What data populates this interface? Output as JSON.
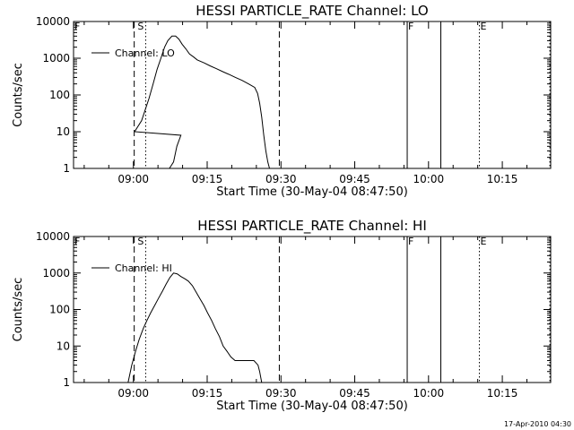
{
  "chart_data": [
    {
      "type": "line",
      "title": "HESSI PARTICLE_RATE Channel: LO",
      "xlabel": "Start Time (30-May-04 08:47:50)",
      "ylabel": "Counts/sec",
      "yscale": "log",
      "ylim": [
        1,
        10000
      ],
      "xlim_minutes_after_start": [
        0,
        97
      ],
      "xticks": [
        "09:00",
        "09:15",
        "09:30",
        "09:45",
        "10:00",
        "10:15"
      ],
      "yticks": [
        "1",
        "10",
        "100",
        "1000",
        "10000"
      ],
      "legend": {
        "label": "Channel: LO",
        "placement": "top-left"
      },
      "markers": [
        {
          "label": "F",
          "time": "08:47:50",
          "style": "solid"
        },
        {
          "label": "S",
          "time": "09:00:40",
          "style": "text"
        },
        {
          "label": "",
          "time": "09:00:10",
          "style": "dashed"
        },
        {
          "label": "",
          "time": "09:02:30",
          "style": "dotted"
        },
        {
          "label": "",
          "time": "09:29:40",
          "style": "dashed"
        },
        {
          "label": "F",
          "time": "09:55:40",
          "style": "solid"
        },
        {
          "label": "",
          "time": "10:02:30",
          "style": "solid"
        },
        {
          "label": "E",
          "time": "10:10:20",
          "style": "dotted"
        },
        {
          "label": "",
          "time": "10:24:40",
          "style": "dotted"
        }
      ],
      "series": [
        {
          "name": "Channel: LO",
          "x": [
            "09:07:20",
            "09:08:10",
            "09:08:50",
            "09:09:40",
            "09:00:15",
            "09:01:40",
            "09:02:25",
            "09:03:10",
            "09:04:00",
            "09:04:50",
            "09:05:35",
            "09:06:20",
            "09:07:00",
            "09:07:50",
            "09:08:35",
            "09:09:15",
            "09:09:55",
            "09:10:40",
            "09:11:25",
            "09:12:10",
            "09:13:00",
            "09:14:20",
            "09:15:35",
            "09:16:50",
            "09:18:10",
            "09:19:30",
            "09:20:45",
            "09:22:05",
            "09:23:25",
            "09:24:40",
            "09:25:15",
            "09:25:40",
            "09:26:05",
            "09:26:30",
            "09:26:55",
            "09:27:20",
            "09:27:40"
          ],
          "y": [
            1,
            1.5,
            4,
            8,
            10,
            20,
            40,
            80,
            200,
            500,
            1000,
            2000,
            3000,
            4000,
            4000,
            3300,
            2400,
            1800,
            1300,
            1100,
            900,
            750,
            620,
            520,
            430,
            360,
            300,
            250,
            200,
            160,
            110,
            60,
            25,
            8,
            3,
            1.5,
            1
          ]
        }
      ]
    },
    {
      "type": "line",
      "title": "HESSI PARTICLE_RATE Channel: HI",
      "xlabel": "Start Time (30-May-04 08:47:50)",
      "ylabel": "Counts/sec",
      "yscale": "log",
      "ylim": [
        1,
        10000
      ],
      "xlim_minutes_after_start": [
        0,
        97
      ],
      "xticks": [
        "09:00",
        "09:15",
        "09:30",
        "09:45",
        "10:00",
        "10:15"
      ],
      "yticks": [
        "1",
        "10",
        "100",
        "1000",
        "10000"
      ],
      "legend": {
        "label": "Channel: HI",
        "placement": "top-left"
      },
      "markers": [
        {
          "label": "F",
          "time": "08:47:50",
          "style": "solid"
        },
        {
          "label": "S",
          "time": "09:00:40",
          "style": "text"
        },
        {
          "label": "",
          "time": "09:00:10",
          "style": "dashed"
        },
        {
          "label": "",
          "time": "09:02:30",
          "style": "dotted"
        },
        {
          "label": "",
          "time": "09:29:40",
          "style": "dashed"
        },
        {
          "label": "F",
          "time": "09:55:40",
          "style": "solid"
        },
        {
          "label": "",
          "time": "10:02:30",
          "style": "solid"
        },
        {
          "label": "E",
          "time": "10:10:20",
          "style": "dotted"
        },
        {
          "label": "",
          "time": "10:24:40",
          "style": "dotted"
        }
      ],
      "series": [
        {
          "name": "Channel: HI",
          "x": [
            "08:58:55",
            "08:59:40",
            "09:00:25",
            "09:01:10",
            "09:02:00",
            "09:02:45",
            "09:03:30",
            "09:04:20",
            "09:05:05",
            "09:05:55",
            "09:06:40",
            "09:07:25",
            "09:08:10",
            "09:08:55",
            "09:09:40",
            "09:10:25",
            "09:11:10",
            "09:12:00",
            "09:12:45",
            "09:13:30",
            "09:14:20",
            "09:15:05",
            "09:15:55",
            "09:16:40",
            "09:17:30",
            "09:18:15",
            "09:19:05",
            "09:19:50",
            "09:20:40",
            "09:21:25",
            "09:22:10",
            "09:23:00",
            "09:23:45",
            "09:24:30",
            "09:25:20",
            "09:25:40",
            "09:26:05"
          ],
          "y": [
            1,
            3,
            7,
            15,
            30,
            50,
            80,
            130,
            200,
            320,
            500,
            750,
            1000,
            950,
            800,
            700,
            600,
            450,
            300,
            200,
            130,
            80,
            50,
            30,
            18,
            10,
            7,
            5,
            4,
            4,
            4,
            4,
            4,
            4,
            3,
            2,
            1
          ]
        }
      ]
    }
  ],
  "footer": {
    "timestamp": "17-Apr-2010 04:30"
  }
}
